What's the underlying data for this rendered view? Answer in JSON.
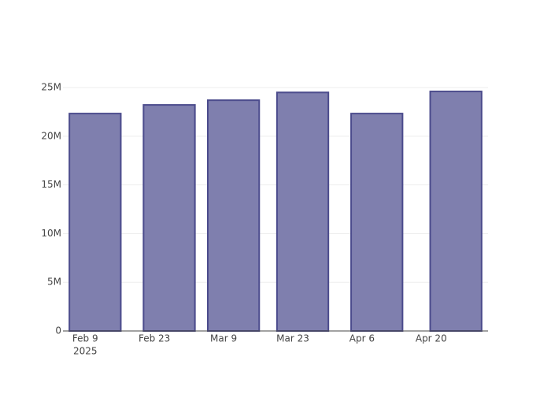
{
  "chart_data": {
    "type": "bar",
    "x": [
      "2025-02-11",
      "2025-02-26",
      "2025-03-11",
      "2025-03-25",
      "2025-04-09",
      "2025-04-25"
    ],
    "values": [
      22330000,
      23220000,
      23700000,
      24500000,
      22330000,
      24600000
    ],
    "color": "#7f7fae",
    "line_color": "#4b4b8c",
    "xlim": [
      "2025-02-04T12:00",
      "2025-05-01T12:00"
    ],
    "xticks": [
      {
        "value": "2025-02-09",
        "label": "Feb 9"
      },
      {
        "value": "2025-02-23",
        "label": "Feb 23"
      },
      {
        "value": "2025-03-09",
        "label": "Mar 9"
      },
      {
        "value": "2025-03-23",
        "label": "Mar 23"
      },
      {
        "value": "2025-04-06",
        "label": "Apr 6"
      },
      {
        "value": "2025-04-20",
        "label": "Apr 20"
      }
    ],
    "x_year_label": "2025",
    "ylim": [
      0,
      25900000
    ],
    "yticks": [
      0,
      {
        "value": 5000000,
        "label": "5M"
      },
      {
        "value": 10000000,
        "label": "10M"
      },
      {
        "value": 15000000,
        "label": "15M"
      },
      {
        "value": 20000000,
        "label": "20M"
      },
      {
        "value": 25000000,
        "label": "25M"
      }
    ],
    "grid": true
  }
}
